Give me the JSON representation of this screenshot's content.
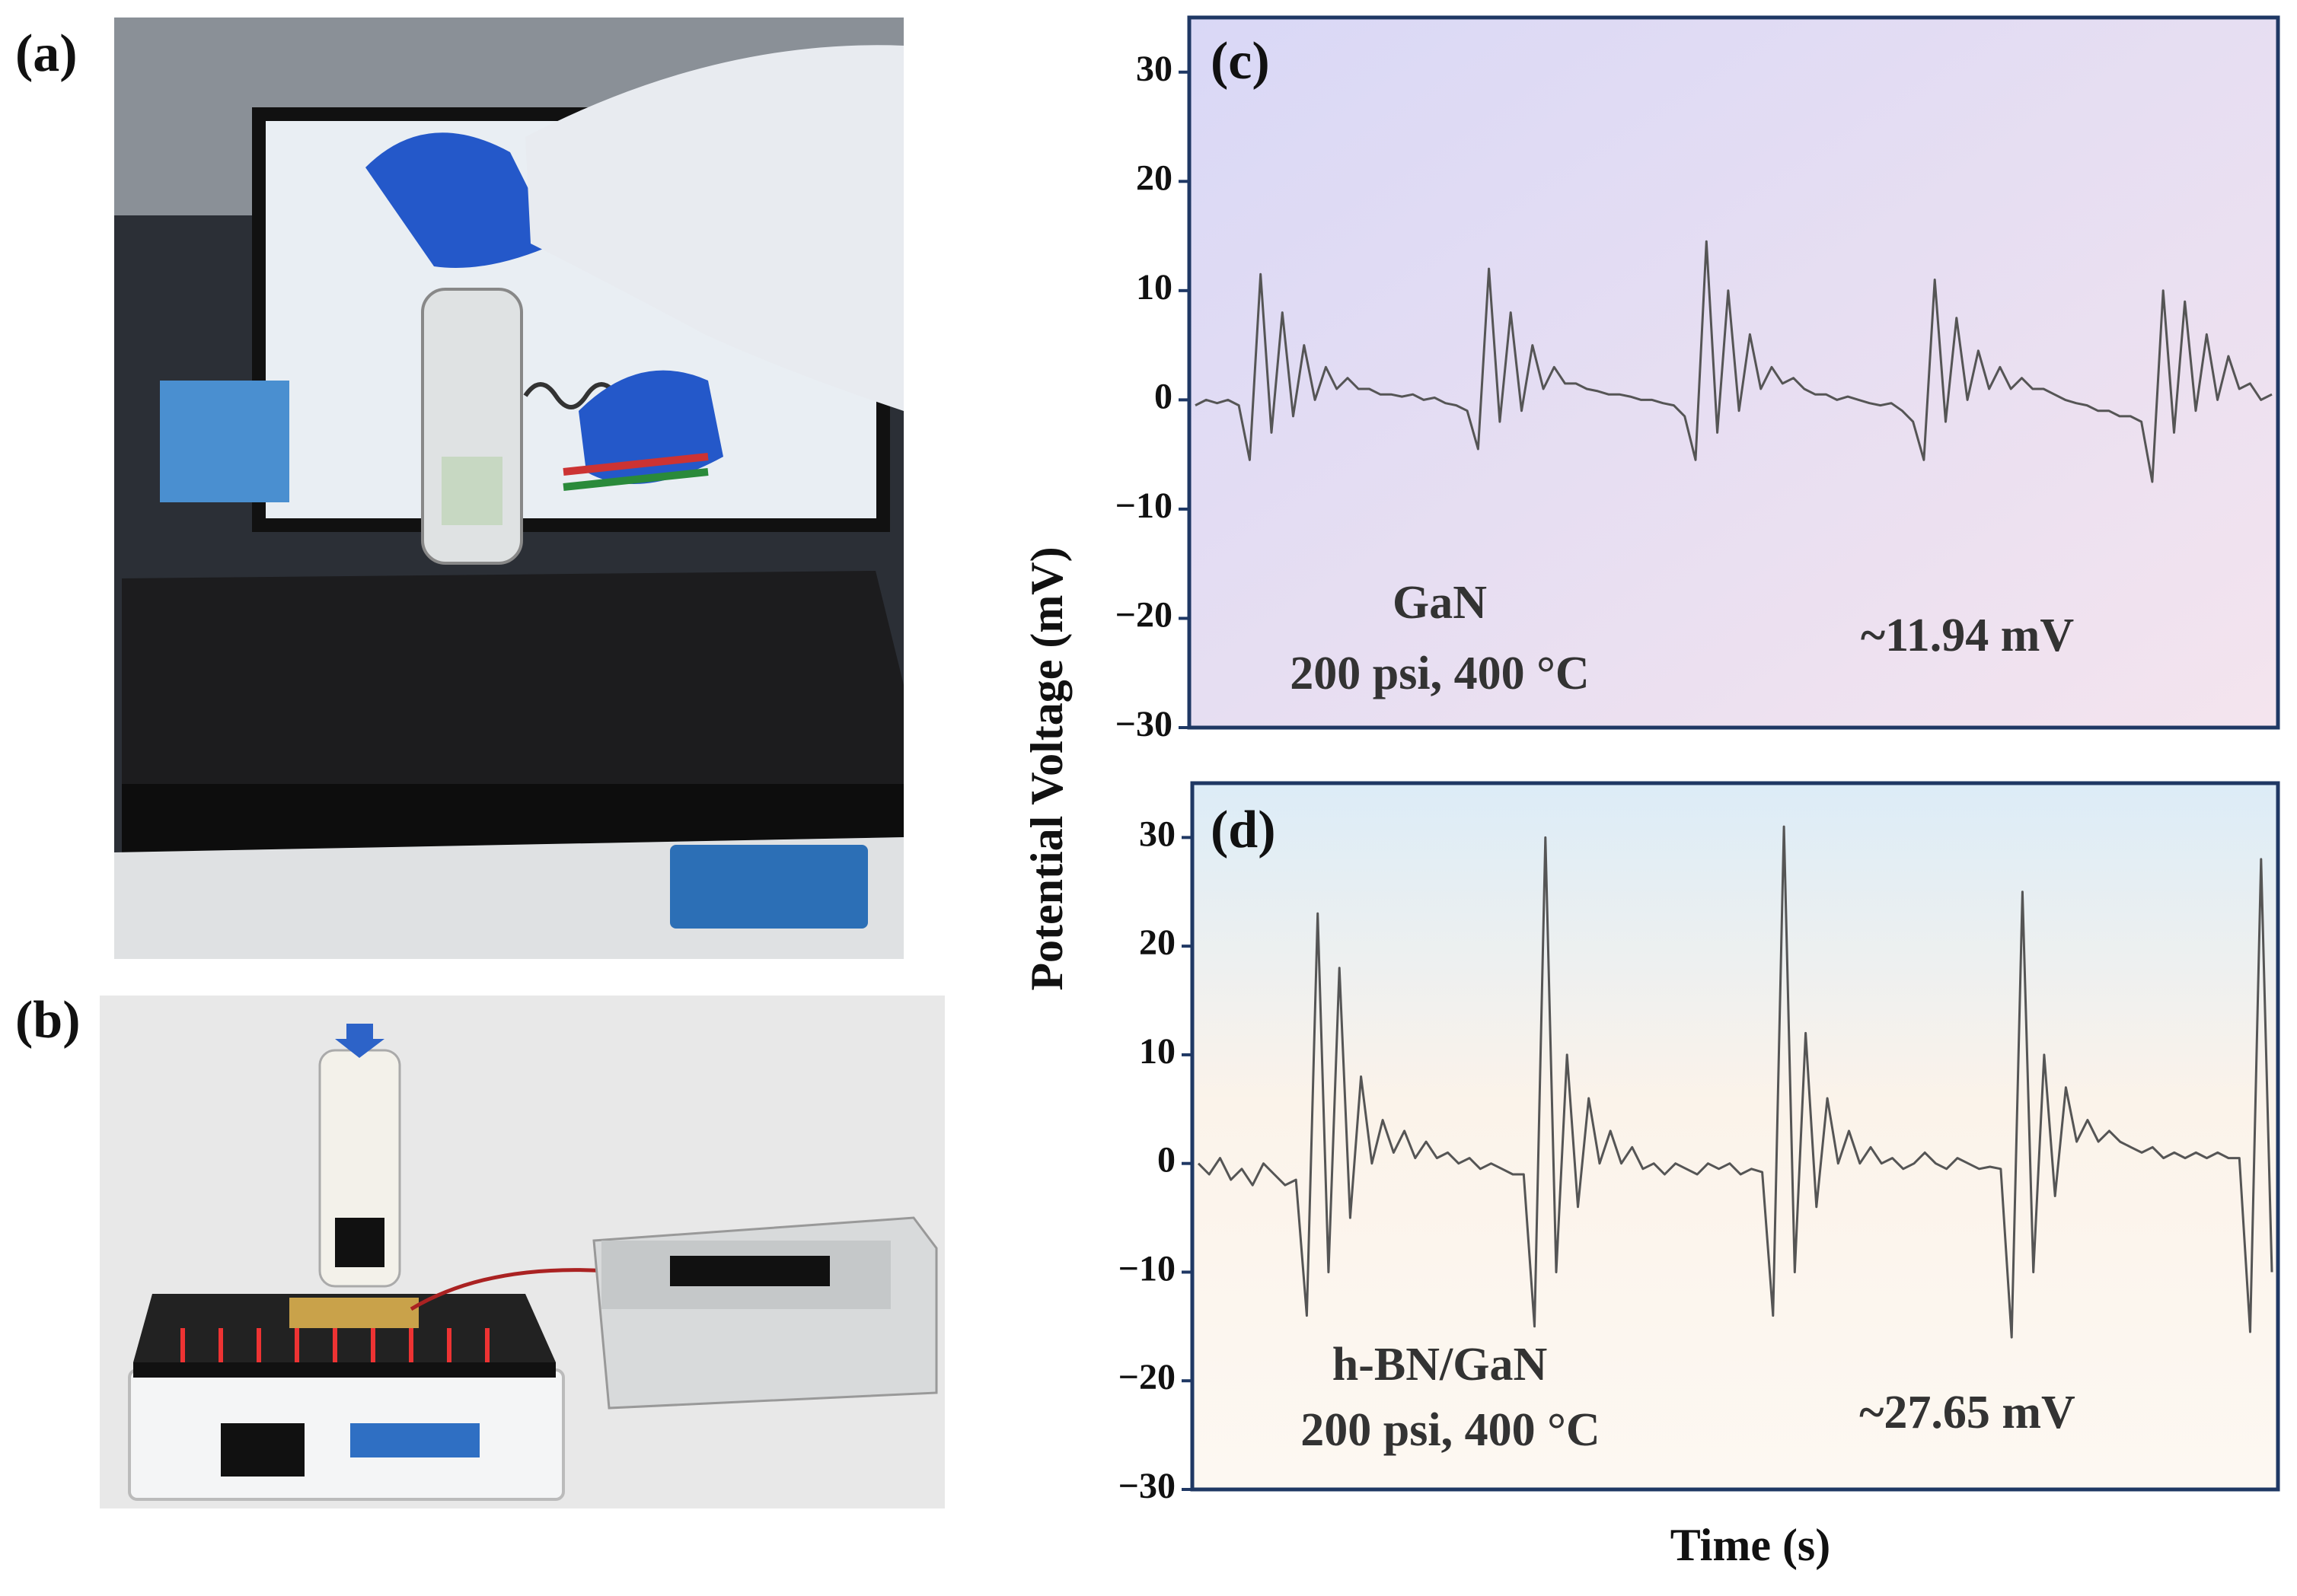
{
  "panel_labels": [
    "(a)",
    "(b)"
  ],
  "ylabel": "Potential Voltage (mV)",
  "xlabel": "Time (s)",
  "chart_data": [
    {
      "type": "line",
      "panel_label": "(c)",
      "color": "#555555",
      "annotations": [
        "GaN",
        "200 psi, 400 °C",
        "~11.94 mV"
      ],
      "ylim": [
        -30,
        35
      ],
      "yticks": [
        {
          "value": -30,
          "label": "−30"
        },
        {
          "value": -20,
          "label": "−20"
        },
        {
          "value": -10,
          "label": "−10"
        },
        0,
        10,
        20,
        30
      ],
      "values": [
        -0.5,
        0,
        -0.3,
        0,
        -0.5,
        -5.5,
        11.5,
        -3,
        8,
        -1.5,
        5,
        0,
        3,
        1,
        2,
        1,
        1,
        0.5,
        0.5,
        0.3,
        0.5,
        0,
        0.2,
        -0.3,
        -0.5,
        -1,
        -4.5,
        12,
        -2,
        8,
        -1,
        5,
        1,
        3,
        1.5,
        1.5,
        1,
        0.8,
        0.5,
        0.5,
        0.3,
        0,
        0,
        -0.3,
        -0.5,
        -1.5,
        -5.5,
        14.5,
        -3,
        10,
        -1,
        6,
        1,
        3,
        1.5,
        2,
        1,
        0.5,
        0.5,
        0,
        0.3,
        0,
        -0.3,
        -0.5,
        -0.3,
        -1,
        -2,
        -5.5,
        11,
        -2,
        7.5,
        0,
        4.5,
        1,
        3,
        1,
        2,
        1,
        1,
        0.5,
        0,
        -0.3,
        -0.5,
        -1,
        -1,
        -1.5,
        -1.5,
        -2,
        -7.5,
        10,
        -3,
        9,
        -1,
        6,
        0,
        4,
        1,
        1.5,
        0,
        0.5
      ]
    },
    {
      "type": "line",
      "panel_label": "(d)",
      "color": "#555555",
      "annotations": [
        "h-BN/GaN",
        "200 psi, 400 °C",
        "~27.65 mV"
      ],
      "ylim": [
        -30,
        35
      ],
      "yticks": [
        {
          "value": -30,
          "label": "−30"
        },
        {
          "value": -20,
          "label": "−20"
        },
        {
          "value": -10,
          "label": "−10"
        },
        0,
        10,
        20,
        30
      ],
      "values": [
        0,
        -1,
        0.5,
        -1.5,
        -0.5,
        -2,
        0,
        -1,
        -2,
        -1.5,
        -14,
        23,
        -10,
        18,
        -5,
        8,
        0,
        4,
        1,
        3,
        0.5,
        2,
        0.5,
        1,
        0,
        0.5,
        -0.5,
        0,
        -0.5,
        -1,
        -1,
        -15,
        30,
        -10,
        10,
        -4,
        6,
        0,
        3,
        0,
        1.5,
        -0.5,
        0,
        -1,
        0,
        -0.5,
        -1,
        0,
        -0.5,
        0,
        -1,
        -0.5,
        -0.8,
        -14,
        31,
        -10,
        12,
        -4,
        6,
        0,
        3,
        0,
        1.5,
        0,
        0.5,
        -0.5,
        0,
        1,
        0,
        -0.5,
        0.5,
        0,
        -0.5,
        -0.3,
        -0.5,
        -16,
        25,
        -10,
        10,
        -3,
        7,
        2,
        4,
        2,
        3,
        2,
        1.5,
        1,
        1.5,
        0.5,
        1,
        0.5,
        1,
        0.5,
        1,
        0.5,
        0.5,
        -15.5,
        28,
        -10
      ]
    }
  ]
}
